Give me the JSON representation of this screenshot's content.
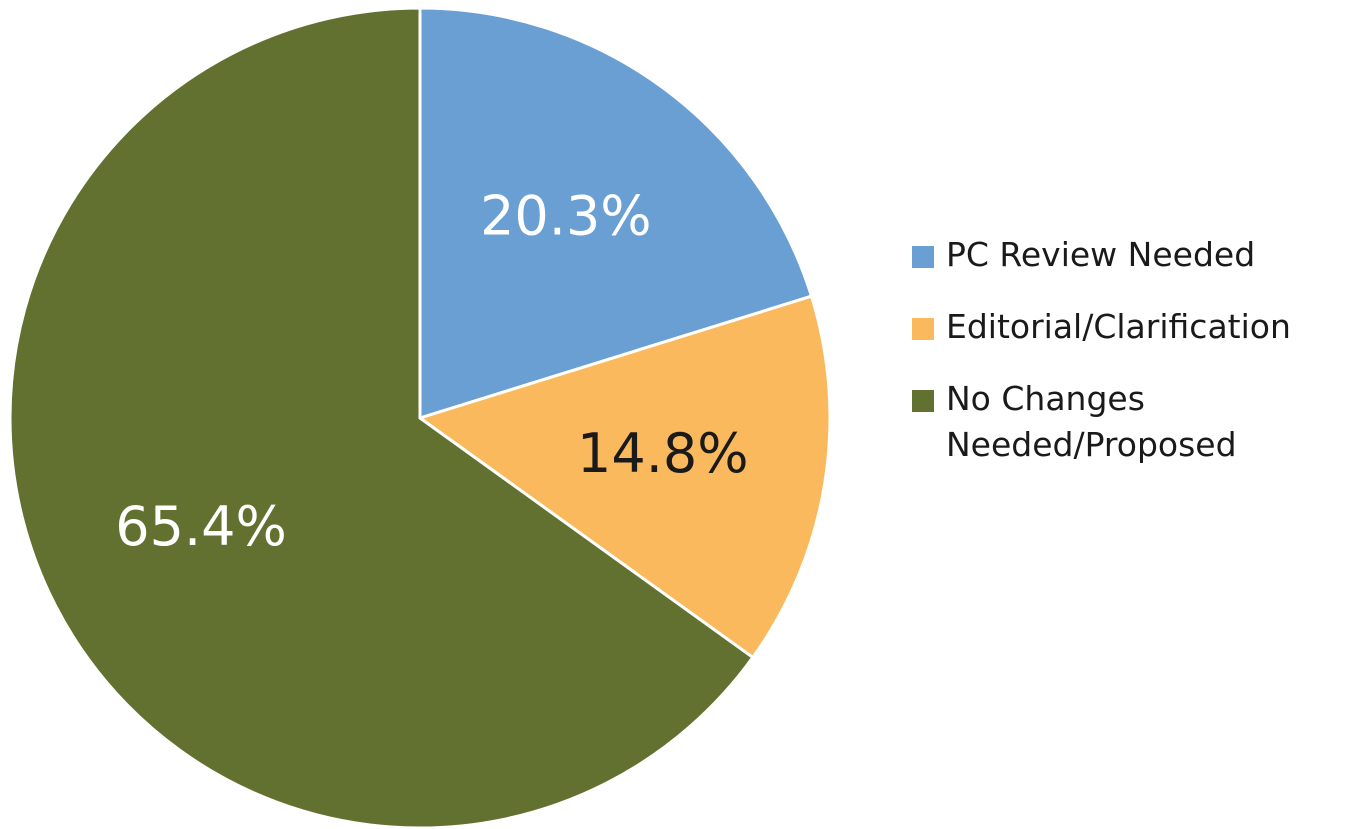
{
  "chart_data": {
    "type": "pie",
    "categories": [
      "PC Review Needed",
      "Editorial/Clarification",
      "No Changes Needed/Proposed"
    ],
    "values": [
      20.3,
      14.8,
      65.4
    ],
    "value_labels": [
      "20.3%",
      "14.8%",
      "65.4%"
    ],
    "colors": [
      "#6a9fd4",
      "#fbb95e",
      "#637130"
    ],
    "label_colors": [
      "#ffffff",
      "#1a1a1a",
      "#ffffff"
    ],
    "legend": "right"
  }
}
